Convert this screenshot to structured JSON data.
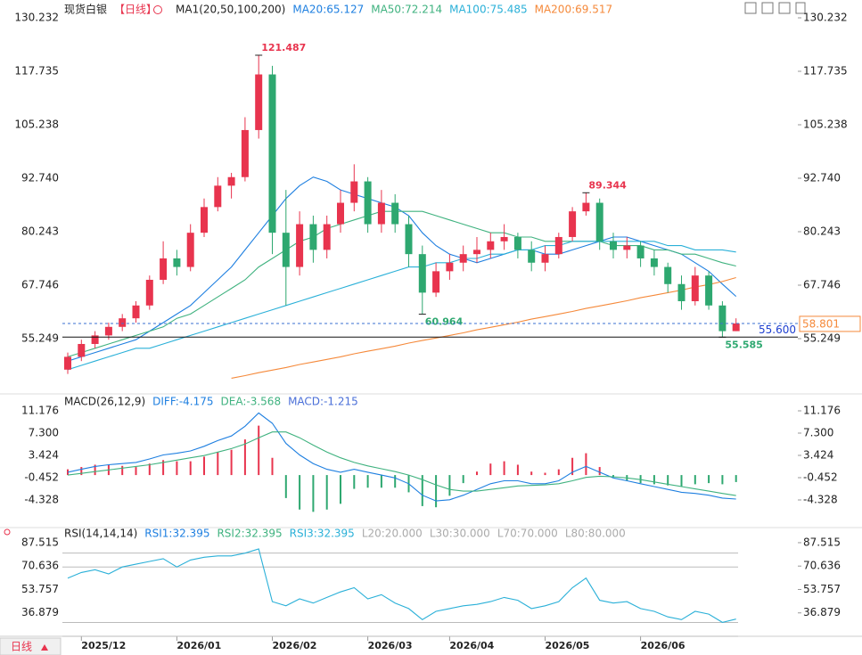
{
  "chart_data": {
    "type": "candlestick",
    "title": "现货白银",
    "period": "【日线】",
    "indicator": "MA1(20,50,100,200)",
    "up_color": "#e8344e",
    "down_color": "#2ea870",
    "categories": [
      null,
      "2025/12",
      null,
      null,
      null,
      null,
      null,
      null,
      "2026/01",
      null,
      null,
      null,
      null,
      null,
      null,
      "2026/02",
      null,
      null,
      null,
      null,
      null,
      null,
      "2026/03",
      null,
      null,
      null,
      null,
      null,
      "2026/04",
      null,
      null,
      null,
      null,
      null,
      null,
      "2026/05",
      null,
      null,
      null,
      null,
      null,
      null,
      "2026/06",
      null,
      null,
      null,
      null,
      null,
      null,
      null
    ],
    "candles": [
      [
        48,
        52,
        47,
        51
      ],
      [
        51,
        55,
        50,
        54
      ],
      [
        54,
        57,
        53,
        56
      ],
      [
        56,
        59,
        55,
        58
      ],
      [
        58,
        61,
        57,
        60
      ],
      [
        60,
        64,
        59,
        63
      ],
      [
        63,
        70,
        62,
        69
      ],
      [
        69,
        78,
        68,
        74
      ],
      [
        74,
        76,
        70,
        72
      ],
      [
        72,
        82,
        71,
        80
      ],
      [
        80,
        88,
        79,
        86
      ],
      [
        86,
        93,
        85,
        91
      ],
      [
        91,
        94,
        88,
        93
      ],
      [
        93,
        107,
        92,
        104
      ],
      [
        104,
        121.487,
        102,
        117
      ],
      [
        117,
        119,
        75,
        80
      ],
      [
        80,
        90,
        63,
        72
      ],
      [
        72,
        85,
        70,
        82
      ],
      [
        82,
        84,
        73,
        76
      ],
      [
        76,
        84,
        74,
        82
      ],
      [
        82,
        90,
        80,
        87
      ],
      [
        87,
        96,
        85,
        92
      ],
      [
        92,
        93,
        80,
        82
      ],
      [
        82,
        90,
        80,
        87
      ],
      [
        87,
        89,
        80,
        82
      ],
      [
        82,
        84,
        72,
        75
      ],
      [
        75,
        77,
        60.964,
        66
      ],
      [
        66,
        73,
        65,
        71
      ],
      [
        71,
        75,
        69,
        73
      ],
      [
        73,
        77,
        71,
        75
      ],
      [
        75,
        79,
        73,
        76
      ],
      [
        76,
        80,
        74,
        78
      ],
      [
        78,
        82,
        76,
        79
      ],
      [
        79,
        80,
        74,
        76
      ],
      [
        76,
        78,
        71,
        73
      ],
      [
        73,
        77,
        71,
        75
      ],
      [
        75,
        80,
        74,
        79
      ],
      [
        79,
        86,
        78,
        85
      ],
      [
        85,
        89.344,
        84,
        87
      ],
      [
        87,
        88,
        76,
        78
      ],
      [
        78,
        80,
        74,
        76
      ],
      [
        76,
        79,
        74,
        77
      ],
      [
        77,
        78,
        72,
        74
      ],
      [
        74,
        76,
        70,
        72
      ],
      [
        72,
        73,
        66,
        68
      ],
      [
        68,
        70,
        62,
        64
      ],
      [
        64,
        72,
        63,
        70
      ],
      [
        70,
        71,
        62,
        63
      ],
      [
        63,
        64,
        55.585,
        57
      ],
      [
        57,
        60,
        57,
        58.801
      ]
    ],
    "annotations": [
      {
        "candle": 14,
        "at": "high"
      },
      {
        "candle": 26,
        "at": "low"
      },
      {
        "candle": 38,
        "at": "high"
      },
      {
        "candle": 48,
        "at": "low"
      }
    ],
    "price_line": {
      "value": 55.6,
      "label": "55.600"
    },
    "ylim": [
      42.75,
      132.73
    ],
    "yticks": [
      55.249,
      67.746,
      80.243,
      {
        "value": 92.74,
        "label": "92.740"
      },
      105.238,
      117.735,
      130.232
    ],
    "series": [
      {
        "name": "MA20:65.127",
        "color": "#1e7fe0",
        "values": [
          50,
          51,
          52,
          53,
          54,
          55,
          57,
          59,
          61,
          63,
          66,
          69,
          72,
          76,
          80,
          84,
          88,
          91,
          93,
          92,
          90,
          89,
          88,
          87,
          86,
          84,
          80,
          77,
          75,
          74,
          73,
          74,
          75,
          76,
          76,
          75,
          75,
          76,
          77,
          78,
          79,
          79,
          78,
          77,
          76,
          75,
          73,
          71,
          68,
          65.127
        ]
      },
      {
        "name": "MA50:72.214",
        "color": "#3fb27f",
        "values": [
          51,
          52,
          53,
          54,
          55,
          56,
          57,
          58,
          60,
          61,
          63,
          65,
          67,
          69,
          72,
          74,
          76,
          78,
          79,
          81,
          82,
          83,
          84,
          85,
          85,
          85,
          85,
          84,
          83,
          82,
          81,
          80,
          80,
          79,
          79,
          78,
          78,
          78,
          78,
          78,
          77,
          77,
          77,
          76,
          76,
          75,
          75,
          74,
          73,
          72.214
        ]
      },
      {
        "name": "MA100:75.485",
        "color": "#2ab0d8",
        "values": [
          48,
          49,
          50,
          51,
          52,
          53,
          53,
          54,
          55,
          56,
          57,
          58,
          59,
          60,
          61,
          62,
          63,
          64,
          65,
          66,
          67,
          68,
          69,
          70,
          71,
          72,
          72,
          73,
          73,
          74,
          74,
          75,
          75,
          76,
          76,
          77,
          77,
          78,
          78,
          78,
          78,
          78,
          78,
          78,
          77,
          77,
          76,
          76,
          76,
          75.485
        ]
      },
      {
        "name": "MA200:69.517",
        "color": "#f5893a",
        "values": [
          null,
          null,
          null,
          null,
          null,
          null,
          null,
          null,
          null,
          null,
          null,
          null,
          46,
          46.6,
          47.3,
          47.9,
          48.5,
          49.2,
          49.8,
          50.4,
          51,
          51.7,
          52.3,
          52.9,
          53.5,
          54.2,
          54.8,
          55.4,
          56,
          56.6,
          57.3,
          57.9,
          58.5,
          59.1,
          59.8,
          60.4,
          61,
          61.6,
          62.3,
          62.9,
          63.5,
          64.1,
          64.8,
          65.4,
          66,
          66.6,
          67.3,
          67.9,
          68.6,
          69.517
        ]
      }
    ],
    "macd": {
      "title": "MACD(26,12,9)",
      "ylim": [
        -8.824,
        13.657
      ],
      "yticks": [
        -4.328,
        -0.452,
        3.424,
        {
          "value": 7.3,
          "label": "7.300"
        },
        11.176
      ],
      "series": [
        {
          "name": "DIFF:-4.175",
          "color": "#1e7fe0",
          "values": [
            0.5,
            1.0,
            1.5,
            1.8,
            2.0,
            2.2,
            2.8,
            3.5,
            3.8,
            4.2,
            5.0,
            6.0,
            6.8,
            8.5,
            10.8,
            9.0,
            5.5,
            3.5,
            2.0,
            1.0,
            0.5,
            1.0,
            0.5,
            0.0,
            -0.5,
            -1.5,
            -3.5,
            -4.5,
            -4.3,
            -3.5,
            -2.5,
            -1.5,
            -1.0,
            -1.0,
            -1.5,
            -1.5,
            -1.0,
            0.5,
            1.5,
            0.5,
            -0.5,
            -1.0,
            -1.5,
            -2.0,
            -2.5,
            -3.0,
            -3.2,
            -3.5,
            -4.0,
            -4.175
          ]
        },
        {
          "name": "DEA:-3.568",
          "color": "#3fb27f",
          "values": [
            0,
            0.3,
            0.6,
            0.9,
            1.2,
            1.5,
            1.8,
            2.2,
            2.6,
            3.0,
            3.4,
            4.0,
            4.6,
            5.4,
            6.5,
            7.5,
            7.5,
            6.5,
            5.2,
            4.0,
            3.0,
            2.2,
            1.6,
            1.1,
            0.6,
            0.0,
            -0.8,
            -1.7,
            -2.5,
            -2.8,
            -2.8,
            -2.5,
            -2.2,
            -1.9,
            -1.8,
            -1.7,
            -1.5,
            -1.0,
            -0.4,
            -0.2,
            -0.3,
            -0.5,
            -0.8,
            -1.2,
            -1.6,
            -2.0,
            -2.4,
            -2.8,
            -3.2,
            -3.568
          ]
        }
      ],
      "histogram": {
        "name": "MACD:-1.215",
        "color": "#4a6fd8",
        "values": [
          1.0,
          1.4,
          1.8,
          1.8,
          1.6,
          1.4,
          2.0,
          2.6,
          2.4,
          2.4,
          3.2,
          4.0,
          4.4,
          6.2,
          8.6,
          3.0,
          -4.0,
          -6.0,
          -6.4,
          -6.0,
          -5.0,
          -2.4,
          -2.2,
          -2.2,
          -2.2,
          -3.0,
          -5.4,
          -5.6,
          -3.6,
          -1.4,
          0.6,
          2.0,
          2.4,
          1.8,
          0.6,
          0.4,
          1.0,
          3.0,
          3.8,
          1.4,
          -0.4,
          -1.0,
          -1.4,
          -1.6,
          -1.8,
          -2.0,
          -1.6,
          -1.4,
          -1.6,
          -1.215
        ]
      }
    },
    "rsi": {
      "title": "RSI(14,14,14)",
      "ylim": [
        20,
        96.49
      ],
      "yticks": [
        36.879,
        53.757,
        70.636,
        87.515
      ],
      "color": "#2ab0d8",
      "legend": [
        {
          "name": "RSI1:32.395",
          "color": "#1e7fe0"
        },
        {
          "name": "RSI2:32.395",
          "color": "#3fb27f"
        },
        {
          "name": "RSI3:32.395",
          "color": "#2ab0d8"
        }
      ],
      "values": [
        62,
        66,
        68,
        65,
        70,
        72,
        74,
        76,
        70,
        75,
        77,
        78,
        78,
        80,
        83,
        45,
        42,
        47,
        44,
        48,
        52,
        55,
        47,
        50,
        44,
        40,
        32,
        38,
        40,
        42,
        43,
        45,
        48,
        46,
        40,
        42,
        45,
        55,
        62,
        46,
        44,
        45,
        40,
        38,
        34,
        32,
        38,
        36,
        30,
        32.395
      ],
      "levels": [
        {
          "name": "L20:20.000",
          "value": 20
        },
        {
          "name": "L30:30.000",
          "value": 30
        },
        {
          "name": "L70:70.000",
          "value": 70
        },
        {
          "name": "L80:80.000",
          "value": 80
        }
      ]
    },
    "period_tab": "日线"
  }
}
